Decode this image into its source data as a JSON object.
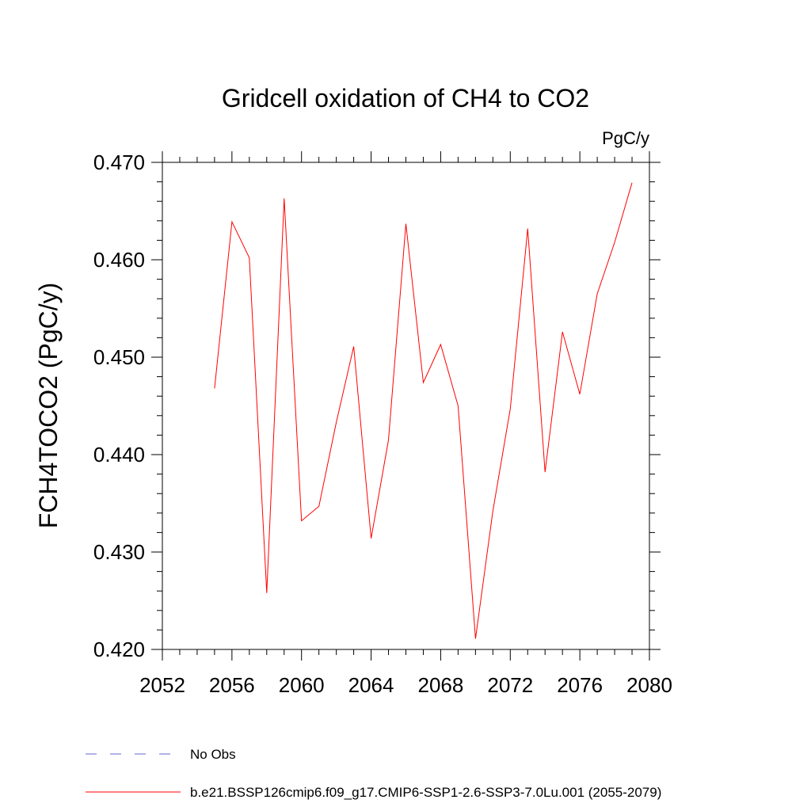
{
  "chart_data": {
    "type": "line",
    "title": "Gridcell oxidation of CH4 to CO2",
    "units": "PgC/y",
    "ylabel": "FCH4TOCO2  (PgC/y)",
    "xlabel": "",
    "xlim": [
      2052,
      2080
    ],
    "ylim": [
      0.42,
      0.47
    ],
    "x_ticks": [
      2052,
      2056,
      2060,
      2064,
      2068,
      2072,
      2076,
      2080
    ],
    "x_tick_labels": [
      "2052",
      "2056",
      "2060",
      "2064",
      "2068",
      "2072",
      "2076",
      "2080"
    ],
    "y_ticks": [
      0.42,
      0.43,
      0.44,
      0.45,
      0.46,
      0.47
    ],
    "y_tick_labels": [
      "0.420",
      "0.430",
      "0.440",
      "0.450",
      "0.460",
      "0.470"
    ],
    "grid": false,
    "legend_position": "bottom",
    "series": [
      {
        "name": "b.e21.BSSP126cmip6.f09_g17.CMIP6-SSP1-2.6-SSP3-7.0Lu.001 (2055-2079)",
        "color": "#ff0000",
        "style": "solid",
        "x": [
          2055,
          2056,
          2057,
          2058,
          2059,
          2060,
          2061,
          2062,
          2063,
          2064,
          2065,
          2066,
          2067,
          2068,
          2069,
          2070,
          2071,
          2072,
          2073,
          2074,
          2075,
          2076,
          2077,
          2078,
          2079
        ],
        "y": [
          0.4468,
          0.4639,
          0.4602,
          0.4258,
          0.4663,
          0.4332,
          0.4347,
          0.4433,
          0.4511,
          0.4314,
          0.4415,
          0.4637,
          0.4474,
          0.4513,
          0.445,
          0.4211,
          0.4342,
          0.4447,
          0.4632,
          0.4382,
          0.4526,
          0.4462,
          0.4565,
          0.4618,
          0.4679
        ]
      }
    ],
    "legend": [
      {
        "label": "No Obs",
        "color": "#6666cc",
        "style": "dashed"
      },
      {
        "label": "b.e21.BSSP126cmip6.f09_g17.CMIP6-SSP1-2.6-SSP3-7.0Lu.001 (2055-2079)",
        "color": "#ff0000",
        "style": "solid"
      }
    ]
  }
}
